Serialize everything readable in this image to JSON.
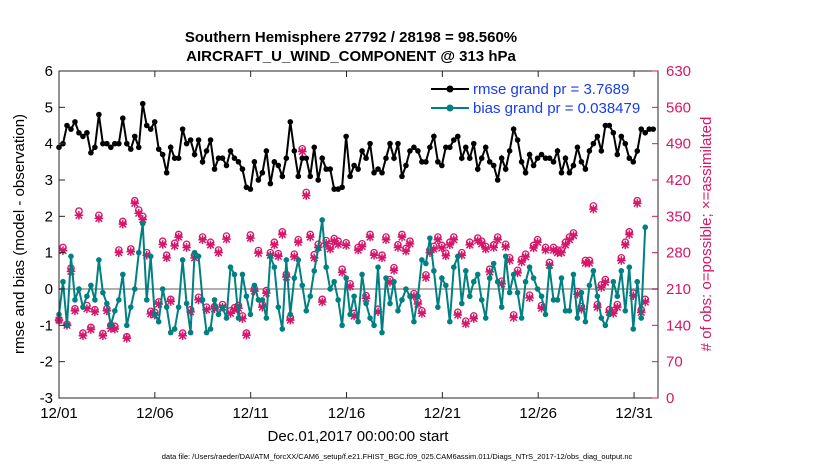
{
  "chart_data": {
    "type": "line",
    "title_line1": "Southern Hemisphere 27792 / 28198 = 98.560%",
    "title_line2": "AIRCRAFT_U_WIND_COMPONENT @ 313 hPa",
    "xlabel": "Dec.01,2017 00:00:00 start",
    "ylabel_left": "rmse and bias (model - observation)",
    "ylabel_right": "# of obs: o=possible; ×=assimilated",
    "footer": "data file: /Users/raeder/DAI/ATM_forcXX/CAM6_setup/f.e21.FHIST_BGC.f09_025.CAM6assim.011/Diags_NTrS_2017-12/obs_diag_output.nc",
    "x_ticks": [
      {
        "value": 0,
        "label": "12/01"
      },
      {
        "value": 5,
        "label": "12/06"
      },
      {
        "value": 10,
        "label": "12/11"
      },
      {
        "value": 15,
        "label": "12/16"
      },
      {
        "value": 20,
        "label": "12/21"
      },
      {
        "value": 25,
        "label": "12/26"
      },
      {
        "value": 30,
        "label": "12/31"
      }
    ],
    "xlim": [
      0,
      31.25
    ],
    "ylim_left": [
      -3,
      6
    ],
    "ylim_right": [
      0,
      630
    ],
    "y_ticks_left": [
      "-3",
      "-2",
      "-1",
      "0",
      "1",
      "2",
      "3",
      "4",
      "5",
      "6"
    ],
    "y_ticks_right": [
      "0",
      "70",
      "140",
      "210",
      "280",
      "350",
      "420",
      "490",
      "560",
      "630"
    ],
    "legend": [
      {
        "label": "rmse grand pr = 3.7689",
        "color": "#000000"
      },
      {
        "label": "bias grand pr = 0.038479",
        "color": "#008080"
      }
    ],
    "colors": {
      "rmse": "#000000",
      "bias": "#008080",
      "obs": "#d6166a",
      "zero_line": "#b0b0b0",
      "legend_text": "#1a3ee6",
      "right_axis": "#d6166a"
    },
    "rmse": [
      3.9,
      4.0,
      4.5,
      4.4,
      4.6,
      4.3,
      4.2,
      4.3,
      3.75,
      3.9,
      4.8,
      4.0,
      4.0,
      3.9,
      4.0,
      4.0,
      4.7,
      4.0,
      3.85,
      4.2,
      3.9,
      5.1,
      4.5,
      4.4,
      4.6,
      3.85,
      3.7,
      3.2,
      3.9,
      3.6,
      3.6,
      4.4,
      4.0,
      4.1,
      3.7,
      4.1,
      3.5,
      3.8,
      4.1,
      3.3,
      3.6,
      3.6,
      3.4,
      3.8,
      3.6,
      3.5,
      3.3,
      2.8,
      2.75,
      3.5,
      3.0,
      3.2,
      3.8,
      2.9,
      3.5,
      3.4,
      3.1,
      3.6,
      4.6,
      3.8,
      3.1,
      3.6,
      3.6,
      3.1,
      3.9,
      3.0,
      3.6,
      3.3,
      3.3,
      2.75,
      2.75,
      2.8,
      4.2,
      3.1,
      3.4,
      3.3,
      3.8,
      3.6,
      4.0,
      3.2,
      3.3,
      3.2,
      3.6,
      4.0,
      3.6,
      4.0,
      3.1,
      3.4,
      3.8,
      3.9,
      3.8,
      3.5,
      3.5,
      3.9,
      4.2,
      3.5,
      3.4,
      3.9,
      3.9,
      4.1,
      4.2,
      3.6,
      3.9,
      3.6,
      4.0,
      3.3,
      3.6,
      3.9,
      3.5,
      3.4,
      3.0,
      3.6,
      3.3,
      3.8,
      4.4,
      4.1,
      3.5,
      3.2,
      3.7,
      3.4,
      3.6,
      3.7,
      3.6,
      3.6,
      3.5,
      3.8,
      3.2,
      3.6,
      3.2,
      3.4,
      3.9,
      3.5,
      3.3,
      3.8,
      4.0,
      4.2,
      3.8,
      4.5,
      4.5,
      4.3,
      3.7,
      4.2,
      4.0,
      3.6,
      3.5,
      3.8,
      4.4,
      4.3,
      4.4,
      4.4
    ],
    "bias": [
      -0.7,
      0.2,
      -1.0,
      0.9,
      -0.3,
      0.0,
      -0.5,
      -0.2,
      0.1,
      -0.3,
      0.8,
      -0.1,
      -0.4,
      -1.0,
      -0.6,
      -0.3,
      0.4,
      -1.0,
      -0.5,
      0.0,
      1.0,
      1.8,
      -0.3,
      0.9,
      -0.7,
      -0.9,
      0.0,
      -0.5,
      -1.2,
      -1.1,
      -0.5,
      0.8,
      -0.4,
      -1.2,
      1.0,
      0.9,
      -0.3,
      -1.2,
      -1.1,
      -0.3,
      -0.7,
      -0.5,
      -0.8,
      0.6,
      0.4,
      -0.8,
      0.4,
      -0.2,
      -0.7,
      0.1,
      -0.3,
      -0.3,
      -0.8,
      0.9,
      0.6,
      -0.5,
      -1.1,
      0.8,
      -0.7,
      0.3,
      0.8,
      0.1,
      -0.6,
      -0.2,
      0.5,
      1.1,
      1.9,
      0.6,
      0.0,
      0.2,
      -0.3,
      -1.0,
      0.3,
      -0.7,
      -0.2,
      -0.9,
      0.4,
      -0.4,
      -0.8,
      -1.0,
      0.6,
      -1.2,
      0.3,
      -0.4,
      0.2,
      -0.6,
      -0.3,
      0.0,
      -0.2,
      -0.9,
      -0.2,
      0.8,
      0.7,
      1.4,
      0.5,
      -0.5,
      0.3,
      0.1,
      -0.9,
      0.6,
      0.9,
      -0.4,
      0.5,
      -0.2,
      0.2,
      0.4,
      -0.3,
      -0.8,
      0.3,
      0.7,
      0.2,
      -0.5,
      0.9,
      -0.1,
      0.4,
      -0.1,
      -0.8,
      0.2,
      0.6,
      0.3,
      0.0,
      -0.2,
      -0.7,
      0.6,
      -0.3,
      -0.3,
      0.3,
      -0.6,
      -0.6,
      0.4,
      -0.8,
      -0.1,
      -0.9,
      0.1,
      0.5,
      -0.2,
      -0.8,
      -1.0,
      -0.7,
      0.2,
      -0.2,
      0.5,
      -0.6,
      0.6,
      -1.1,
      0.2,
      -0.8,
      1.7
    ],
    "obs_possible": [
      150,
      290,
      142,
      250,
      172,
      360,
      125,
      178,
      136,
      170,
      352,
      124,
      172,
      140,
      138,
      285,
      340,
      118,
      287,
      380,
      362,
      350,
      280,
      167,
      165,
      185,
      302,
      275,
      190,
      298,
      315,
      125,
      296,
      170,
      275,
      194,
      310,
      175,
      300,
      176,
      285,
      180,
      312,
      168,
      174,
      178,
      158,
      125,
      314,
      210,
      284,
      180,
      207,
      280,
      300,
      278,
      320,
      238,
      155,
      277,
      305,
      480,
      396,
      315,
      276,
      296,
      190,
      303,
      292,
      307,
      302,
      248,
      299,
      220,
      163,
      290,
      297,
      197,
      315,
      280,
      171,
      275,
      310,
      228,
      251,
      295,
      315,
      288,
      302,
      201,
      186,
      168,
      237,
      285,
      292,
      310,
      294,
      279,
      300,
      310,
      165,
      280,
      148,
      300,
      158,
      308,
      302,
      292,
      248,
      295,
      310,
      225,
      296,
      270,
      160,
      246,
      267,
      277,
      198,
      294,
      305,
      178,
      290,
      261,
      290,
      285,
      285,
      300,
      310,
      318,
      205,
      176,
      265,
      265,
      370,
      180,
      218,
      228,
      170,
      168,
      180,
      270,
      300,
      320,
      202,
      380,
      170,
      190
    ],
    "obs_assimilated": [
      150,
      284,
      140,
      244,
      168,
      352,
      120,
      172,
      132,
      166,
      346,
      120,
      168,
      134,
      133,
      280,
      335,
      115,
      282,
      375,
      356,
      344,
      275,
      162,
      160,
      181,
      296,
      270,
      186,
      293,
      310,
      120,
      290,
      166,
      270,
      189,
      305,
      170,
      295,
      172,
      280,
      175,
      306,
      163,
      170,
      173,
      153,
      121,
      308,
      206,
      279,
      175,
      202,
      275,
      295,
      273,
      315,
      233,
      150,
      272,
      300,
      475,
      390,
      310,
      270,
      290,
      185,
      298,
      287,
      302,
      296,
      242,
      294,
      215,
      158,
      285,
      292,
      192,
      310,
      275,
      166,
      270,
      305,
      223,
      246,
      290,
      310,
      283,
      297,
      196,
      181,
      163,
      232,
      280,
      287,
      305,
      289,
      274,
      295,
      305,
      160,
      275,
      143,
      295,
      153,
      303,
      297,
      287,
      243,
      290,
      305,
      220,
      291,
      265,
      155,
      241,
      262,
      272,
      193,
      289,
      300,
      173,
      285,
      256,
      285,
      280,
      280,
      295,
      305,
      313,
      200,
      171,
      260,
      260,
      364,
      175,
      213,
      223,
      165,
      163,
      175,
      265,
      295,
      315,
      197,
      375,
      165,
      185
    ]
  }
}
